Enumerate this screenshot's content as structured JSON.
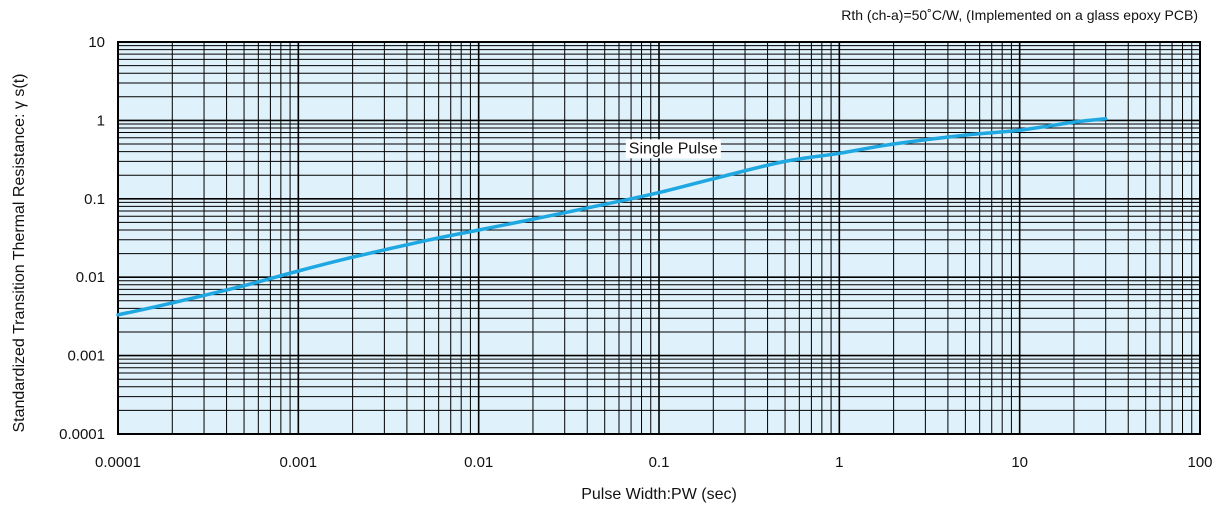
{
  "chart_data": {
    "type": "line",
    "x_scale": "log",
    "y_scale": "log",
    "xlim": [
      0.0001,
      100
    ],
    "ylim": [
      0.0001,
      10
    ],
    "xticks": [
      "0.0001",
      "0.001",
      "0.01",
      "0.1",
      "1",
      "10",
      "100"
    ],
    "yticks": [
      "0.0001",
      "0.001",
      "0.01",
      "0.1",
      "1",
      "10"
    ],
    "xlabel": "Pulse Width:PW (sec)",
    "ylabel": "Standardized Transition Thermal Resistance: γ s(t)",
    "note": "Rth (ch-a)=50˚C/W, (Implemented on a glass epoxy PCB)",
    "grid": true,
    "background_color": "#dff1fa",
    "line_color": "#1ea7e1",
    "series": [
      {
        "name": "Single Pulse",
        "x": [
          0.0001,
          0.0002,
          0.0005,
          0.001,
          0.002,
          0.005,
          0.01,
          0.02,
          0.05,
          0.1,
          0.2,
          0.5,
          1,
          2,
          5,
          10,
          20,
          30
        ],
        "y": [
          0.0033,
          0.0047,
          0.0078,
          0.012,
          0.018,
          0.029,
          0.04,
          0.055,
          0.085,
          0.12,
          0.18,
          0.3,
          0.38,
          0.5,
          0.65,
          0.75,
          0.95,
          1.05
        ]
      }
    ]
  }
}
